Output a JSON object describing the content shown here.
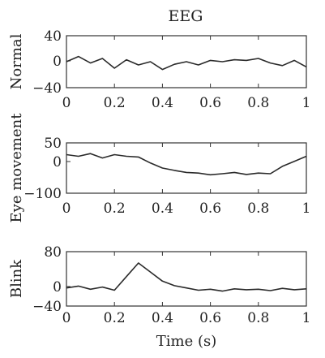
{
  "chart_data": {
    "type": "line",
    "title": "EEG",
    "xlabel": "Time (s)",
    "xlim": [
      0,
      1
    ],
    "xticks": [
      "0",
      "0.2",
      "0.4",
      "0.6",
      "0.8",
      "1"
    ],
    "panels": [
      {
        "ylabel": "Normal",
        "ylim": [
          -40,
          40
        ],
        "yticks": [
          "40",
          "0",
          "−40"
        ],
        "x": [
          0,
          0.05,
          0.1,
          0.15,
          0.2,
          0.25,
          0.3,
          0.35,
          0.4,
          0.45,
          0.5,
          0.55,
          0.6,
          0.65,
          0.7,
          0.75,
          0.8,
          0.85,
          0.9,
          0.95,
          1
        ],
        "y": [
          0,
          8,
          -2,
          5,
          -10,
          3,
          -5,
          0,
          -12,
          -4,
          0,
          -5,
          2,
          0,
          3,
          2,
          5,
          -2,
          -6,
          2,
          -8
        ]
      },
      {
        "ylabel": "Eye movement",
        "ylim": [
          -100,
          50
        ],
        "yticks": [
          "50",
          "0",
          "−100"
        ],
        "x": [
          0,
          0.05,
          0.1,
          0.15,
          0.2,
          0.25,
          0.3,
          0.35,
          0.4,
          0.45,
          0.5,
          0.55,
          0.6,
          0.65,
          0.7,
          0.75,
          0.8,
          0.85,
          0.9,
          0.95,
          1
        ],
        "y": [
          15,
          10,
          18,
          5,
          15,
          10,
          8,
          -10,
          -25,
          -32,
          -38,
          -40,
          -45,
          -42,
          -38,
          -44,
          -40,
          -42,
          -20,
          -5,
          10
        ]
      },
      {
        "ylabel": "Blink",
        "ylim": [
          -40,
          80
        ],
        "yticks": [
          "80",
          "0",
          "−40"
        ],
        "x": [
          0,
          0.05,
          0.1,
          0.15,
          0.2,
          0.25,
          0.3,
          0.35,
          0.4,
          0.45,
          0.5,
          0.55,
          0.6,
          0.65,
          0.7,
          0.75,
          0.8,
          0.85,
          0.9,
          0.95,
          1
        ],
        "y": [
          0,
          4,
          -3,
          2,
          -5,
          25,
          55,
          35,
          15,
          5,
          0,
          -5,
          -3,
          -7,
          -2,
          -4,
          -3,
          -6,
          -1,
          -4,
          -2
        ]
      }
    ]
  }
}
